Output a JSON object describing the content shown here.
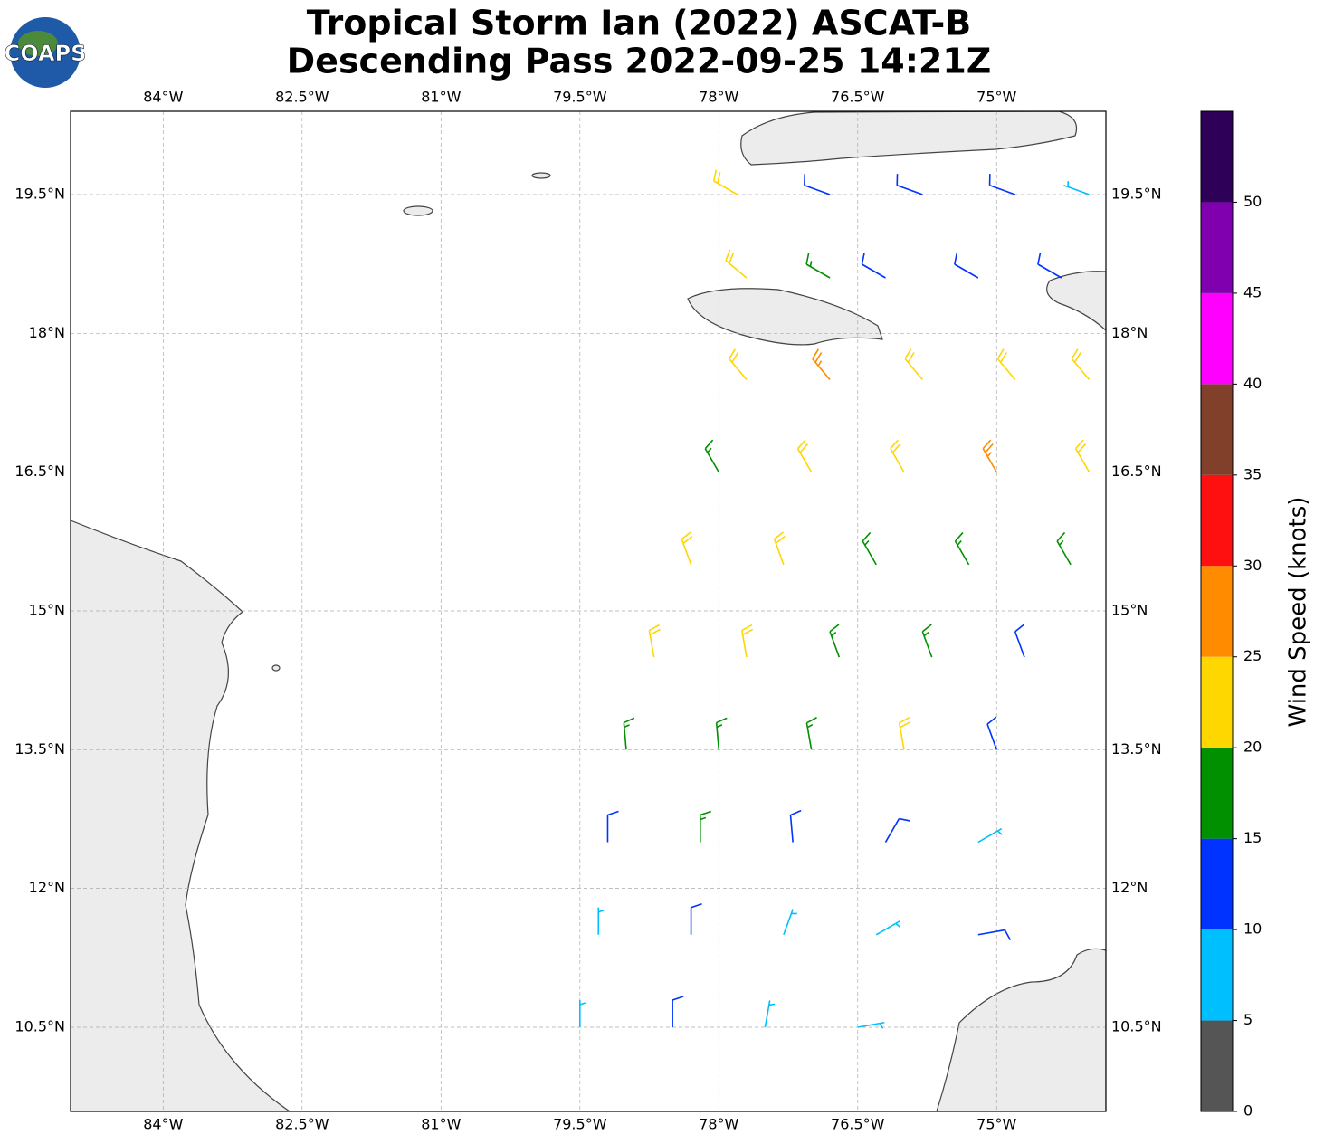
{
  "chart_data": {
    "type": "barb",
    "logo_text": "COAPS",
    "title": "Tropical Storm Ian (2022) ASCAT-B",
    "subtitle": "Descending Pass 2022-09-25 14:21Z",
    "xlim": [
      -85,
      -73.82
    ],
    "ylim": [
      9.59,
      20.4
    ],
    "xticks": [
      {
        "value": -84,
        "label": "84°W"
      },
      {
        "value": -82.5,
        "label": "82.5°W"
      },
      {
        "value": -81,
        "label": "81°W"
      },
      {
        "value": -79.5,
        "label": "79.5°W"
      },
      {
        "value": -78,
        "label": "78°W"
      },
      {
        "value": -76.5,
        "label": "76.5°W"
      },
      {
        "value": -75,
        "label": "75°W"
      }
    ],
    "yticks": [
      {
        "value": 10.5,
        "label": "10.5°N"
      },
      {
        "value": 12,
        "label": "12°N"
      },
      {
        "value": 13.5,
        "label": "13.5°N"
      },
      {
        "value": 15,
        "label": "15°N"
      },
      {
        "value": 16.5,
        "label": "16.5°N"
      },
      {
        "value": 18,
        "label": "18°N"
      },
      {
        "value": 19.5,
        "label": "19.5°N"
      }
    ],
    "grid": true,
    "barbs": {
      "lon": [
        -77.8,
        -76.8,
        -75.8,
        -74.8,
        -74.0,
        -77.7,
        -76.8,
        -76.2,
        -75.2,
        -74.3,
        -77.7,
        -76.8,
        -75.8,
        -74.8,
        -74.0,
        -78.0,
        -77.0,
        -76.0,
        -75.0,
        -74.0,
        -78.3,
        -77.3,
        -76.3,
        -75.3,
        -74.2,
        -78.7,
        -77.7,
        -76.7,
        -75.7,
        -74.7,
        -79.0,
        -78.0,
        -77.0,
        -76.0,
        -75.0,
        -79.2,
        -78.2,
        -77.2,
        -76.2,
        -75.2,
        -79.3,
        -78.3,
        -77.3,
        -76.3,
        -75.2,
        -79.5,
        -78.5,
        -77.5,
        -76.5
      ],
      "lat": [
        19.5,
        19.5,
        19.5,
        19.5,
        19.5,
        18.6,
        18.6,
        18.6,
        18.6,
        18.6,
        17.5,
        17.5,
        17.5,
        17.5,
        17.5,
        16.5,
        16.5,
        16.5,
        16.5,
        16.5,
        15.5,
        15.5,
        15.5,
        15.5,
        15.5,
        14.5,
        14.5,
        14.5,
        14.5,
        14.5,
        13.5,
        13.5,
        13.5,
        13.5,
        13.5,
        12.5,
        12.5,
        12.5,
        12.5,
        12.5,
        11.5,
        11.5,
        11.5,
        11.5,
        11.5,
        10.5,
        10.5,
        10.5,
        10.5
      ],
      "speed": [
        22,
        12,
        12,
        12,
        8,
        22,
        17,
        13,
        13,
        12,
        22,
        27,
        23,
        22,
        22,
        18,
        23,
        22,
        27,
        23,
        22,
        22,
        18,
        17,
        18,
        22,
        23,
        18,
        18,
        13,
        17,
        18,
        17,
        21,
        13,
        13,
        16,
        13,
        12,
        9,
        8,
        12,
        7,
        8,
        11,
        9,
        12,
        8,
        8
      ],
      "direction": [
        300,
        290,
        290,
        290,
        290,
        310,
        300,
        300,
        300,
        300,
        320,
        320,
        320,
        320,
        320,
        330,
        330,
        330,
        330,
        330,
        340,
        340,
        330,
        330,
        330,
        350,
        350,
        340,
        340,
        340,
        355,
        355,
        350,
        350,
        340,
        0,
        0,
        355,
        30,
        60,
        0,
        0,
        20,
        60,
        80,
        0,
        0,
        10,
        80
      ]
    },
    "colorbar": {
      "label": "Wind Speed (knots)",
      "lim": [
        0,
        55
      ],
      "ticks": [
        0,
        5,
        10,
        15,
        20,
        25,
        30,
        35,
        40,
        45,
        50
      ],
      "colors": [
        "#555555",
        "#00bfff",
        "#0033ff",
        "#009000",
        "#ffd700",
        "#ff8c00",
        "#ff1010",
        "#80402a",
        "#ff00ff",
        "#8000b0",
        "#2e0057"
      ]
    }
  }
}
